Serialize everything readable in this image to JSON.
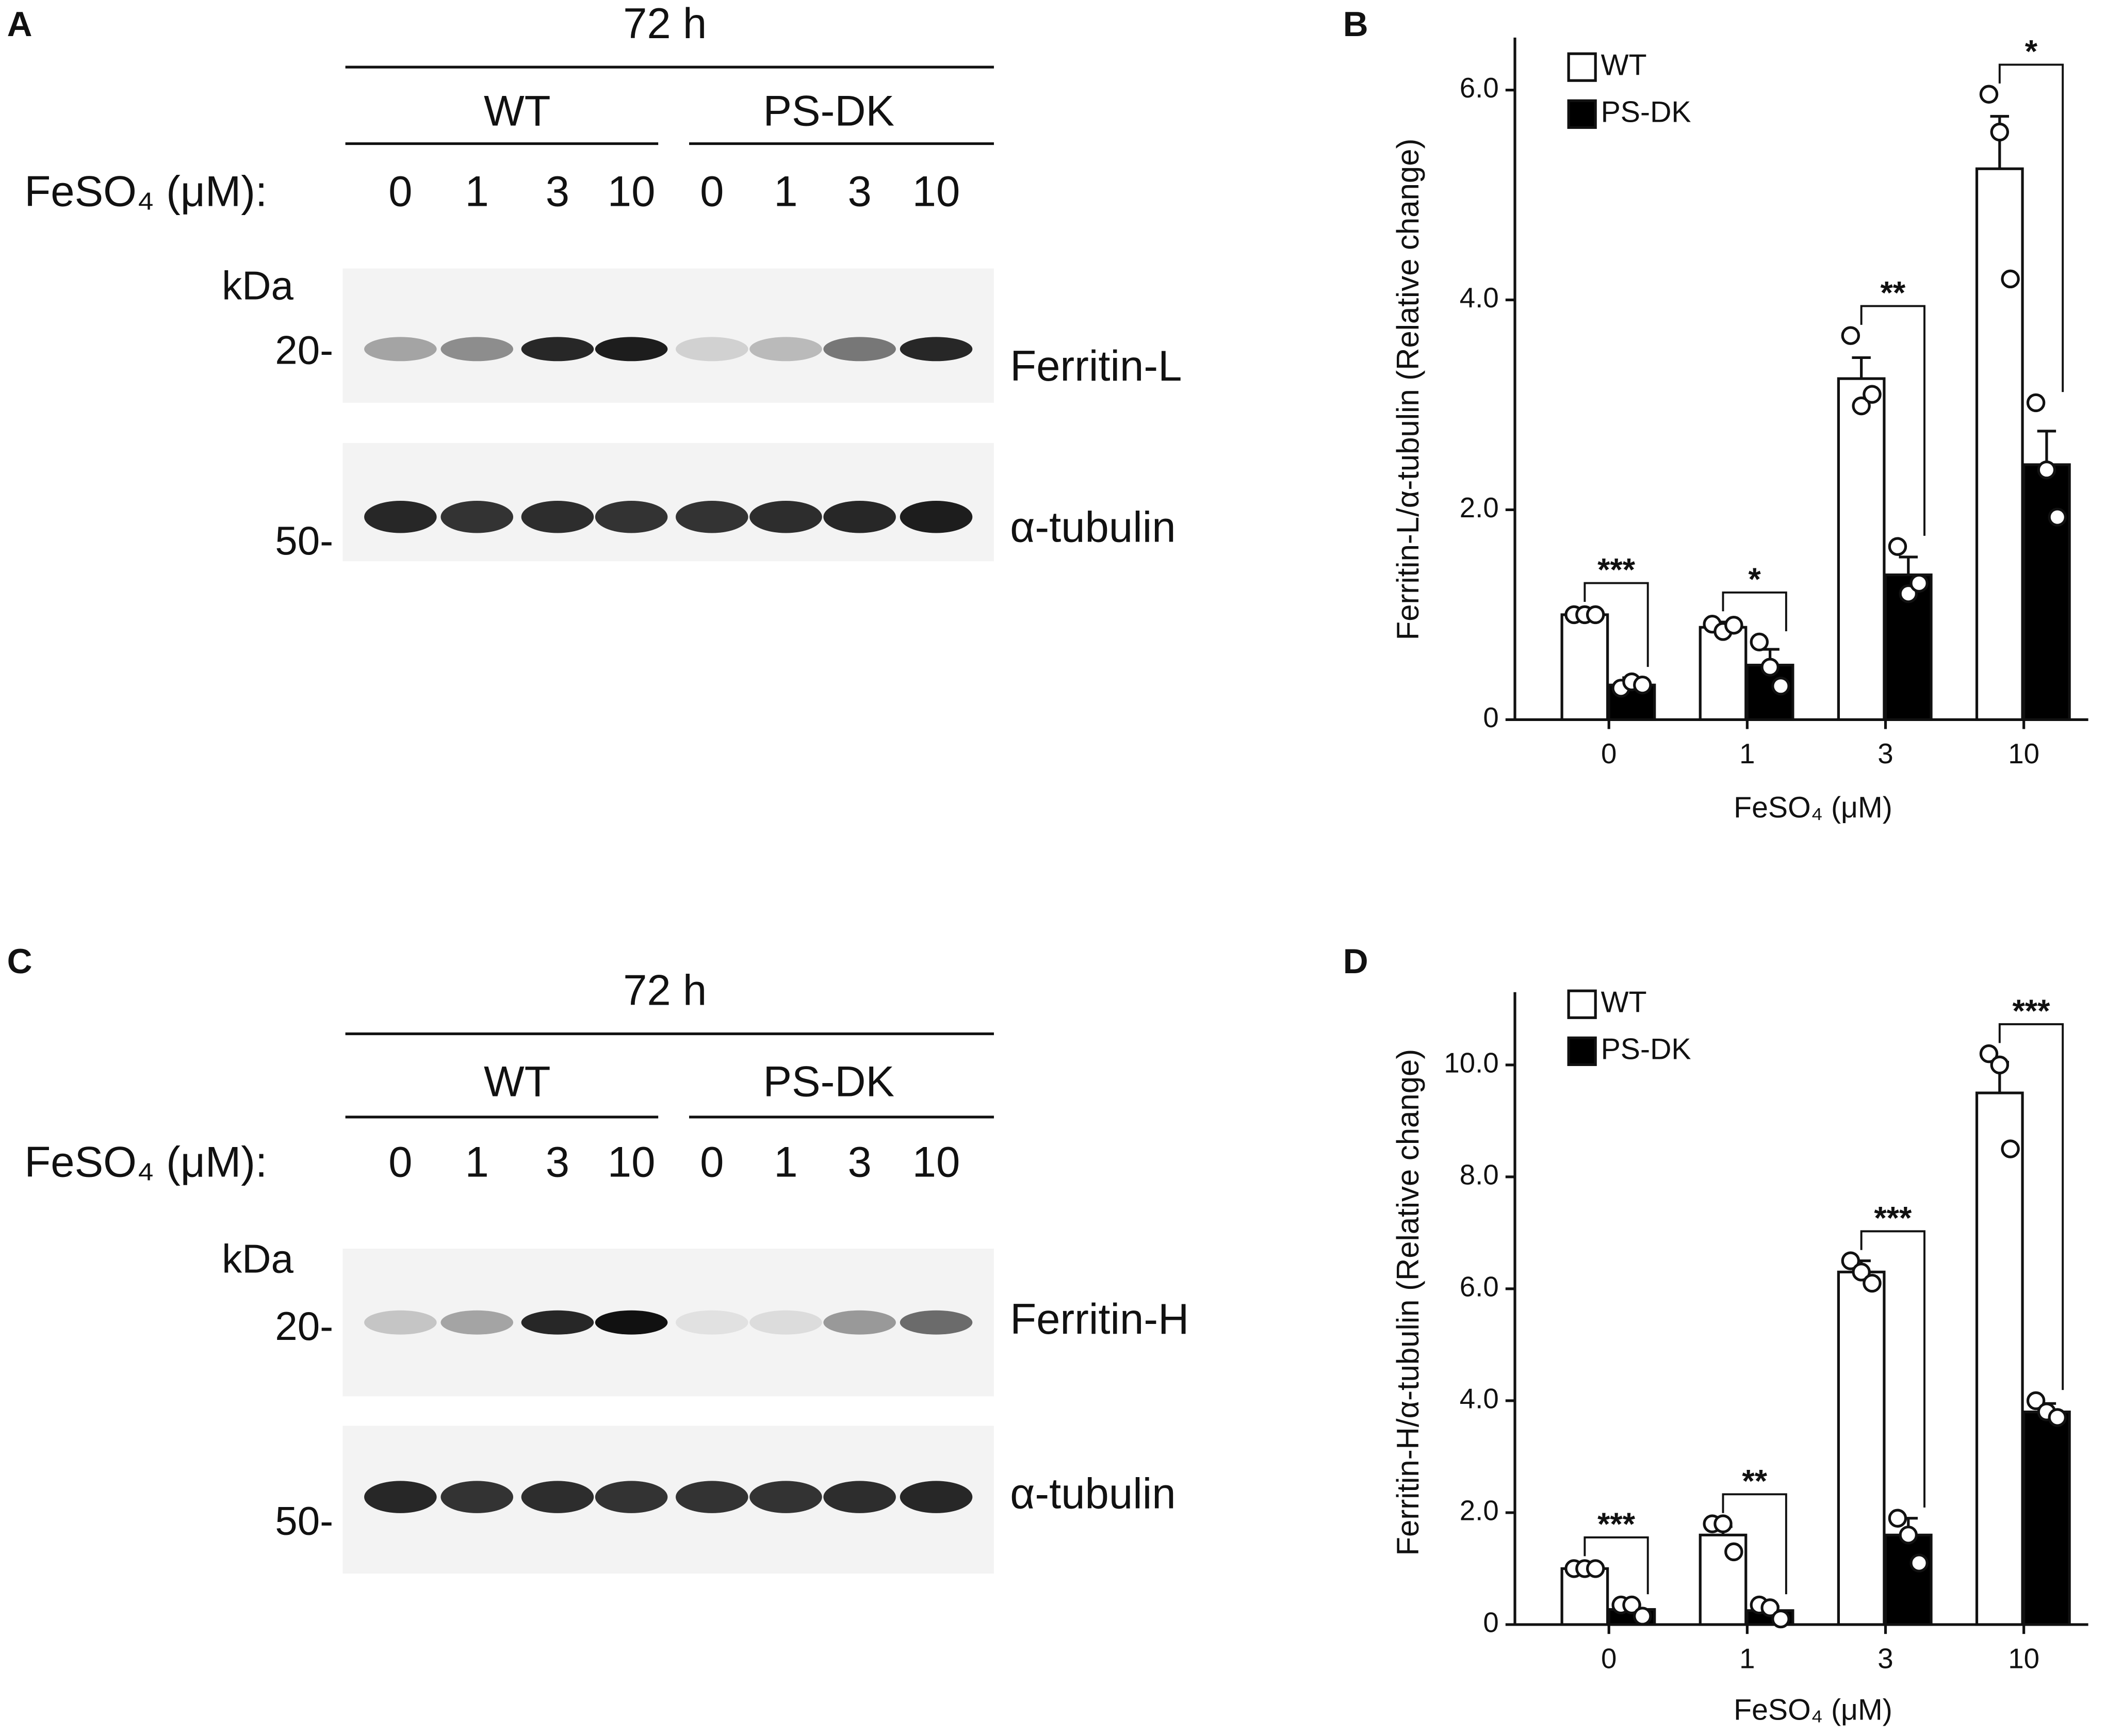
{
  "panel_labels": [
    "A",
    "B",
    "C",
    "D"
  ],
  "blots": [
    {
      "time": "72 h",
      "groups": [
        "WT",
        "PS-DK"
      ],
      "treatment_label": "FeSO₄ (μM):",
      "lanes": [
        "0",
        "1",
        "3",
        "10",
        "0",
        "1",
        "3",
        "10"
      ],
      "mw_unit": "kDa",
      "markers": [
        "20-",
        "50-"
      ],
      "proteins": [
        "Ferritin-L",
        "α-tubulin"
      ]
    },
    {
      "time": "72 h",
      "groups": [
        "WT",
        "PS-DK"
      ],
      "treatment_label": "FeSO₄ (μM):",
      "lanes": [
        "0",
        "1",
        "3",
        "10",
        "0",
        "1",
        "3",
        "10"
      ],
      "mw_unit": "kDa",
      "markers": [
        "20-",
        "50-"
      ],
      "proteins": [
        "Ferritin-H",
        "α-tubulin"
      ]
    }
  ],
  "chart_data": [
    {
      "type": "bar",
      "y_label": "Ferritin-L/α-tubulin (Relative change)",
      "x_label": "FeSO₄ (μM)",
      "categories": [
        "0",
        "1",
        "3",
        "10"
      ],
      "series": [
        {
          "name": "WT",
          "color": "#ffffff",
          "values": [
            1.0,
            0.88,
            3.25,
            5.25
          ],
          "errors": [
            0.02,
            0.05,
            0.2,
            0.5
          ],
          "points": [
            [
              1.0,
              1.0,
              1.0
            ],
            [
              0.91,
              0.84,
              0.9
            ],
            [
              3.66,
              2.99,
              3.1
            ],
            [
              5.96,
              5.6,
              4.2
            ]
          ]
        },
        {
          "name": "PS-DK",
          "color": "#000000",
          "values": [
            0.33,
            0.52,
            1.38,
            2.43
          ],
          "errors": [
            0.07,
            0.15,
            0.17,
            0.32
          ],
          "points": [
            [
              0.3,
              0.36,
              0.33
            ],
            [
              0.74,
              0.5,
              0.32
            ],
            [
              1.65,
              1.2,
              1.3
            ],
            [
              3.02,
              2.38,
              1.93
            ]
          ]
        }
      ],
      "significance": [
        "***",
        "*",
        "**",
        "*"
      ],
      "ylim": [
        0,
        6.5
      ],
      "yticks": [
        0,
        {
          "value": 2,
          "label": "2.0"
        },
        {
          "value": 4,
          "label": "4.0"
        },
        {
          "value": 6,
          "label": "6.0"
        }
      ],
      "legend": "upper left"
    },
    {
      "type": "bar",
      "y_label": "Ferritin-H/α-tubulin (Relative change)",
      "x_label": "FeSO₄ (μM)",
      "categories": [
        "0",
        "1",
        "3",
        "10"
      ],
      "series": [
        {
          "name": "WT",
          "color": "#ffffff",
          "values": [
            1.0,
            1.6,
            6.3,
            9.5
          ],
          "errors": [
            0.03,
            0.15,
            0.2,
            0.55
          ],
          "points": [
            [
              1.0,
              1.0,
              1.0
            ],
            [
              1.8,
              1.8,
              1.3
            ],
            [
              6.5,
              6.3,
              6.1
            ],
            [
              10.2,
              10.0,
              8.5
            ]
          ]
        },
        {
          "name": "PS-DK",
          "color": "#000000",
          "values": [
            0.27,
            0.25,
            1.6,
            3.8
          ],
          "errors": [
            0.08,
            0.07,
            0.3,
            0.15
          ],
          "points": [
            [
              0.35,
              0.35,
              0.15
            ],
            [
              0.35,
              0.3,
              0.1
            ],
            [
              1.9,
              1.6,
              1.1
            ],
            [
              4.0,
              3.8,
              3.7
            ]
          ]
        }
      ],
      "significance": [
        "***",
        "**",
        "***",
        "***"
      ],
      "ylim": [
        0,
        11.3
      ],
      "yticks": [
        0,
        {
          "value": 2,
          "label": "2.0"
        },
        {
          "value": 4,
          "label": "4.0"
        },
        {
          "value": 6,
          "label": "6.0"
        },
        {
          "value": 8,
          "label": "8.0"
        },
        {
          "value": 10,
          "label": "10.0"
        }
      ],
      "legend": "upper left"
    }
  ]
}
